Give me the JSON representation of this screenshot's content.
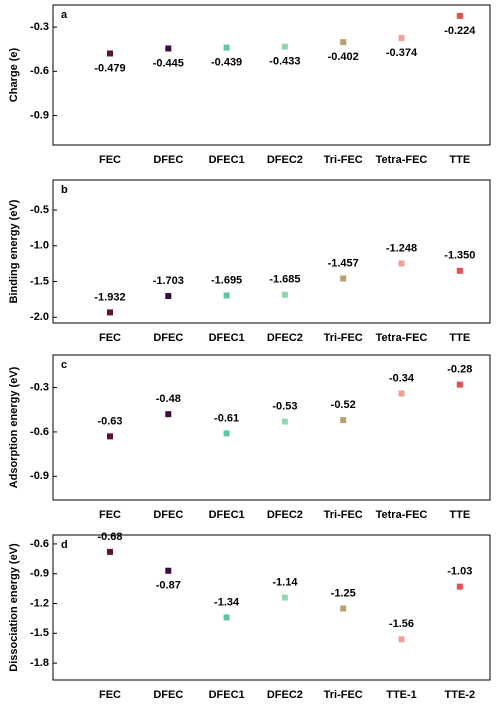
{
  "chart_data": [
    {
      "type": "scatter",
      "panel_label": "a",
      "y_label": "Charge (e)",
      "categories": [
        "FEC",
        "DFEC",
        "DFEC1",
        "DFEC2",
        "Tri-FEC",
        "Tetra-FEC",
        "TTE"
      ],
      "values": [
        -0.479,
        -0.445,
        -0.439,
        -0.433,
        -0.402,
        -0.374,
        -0.224
      ],
      "colors": [
        "#5c1438",
        "#3c0c3c",
        "#5cc8a8",
        "#8ed8b0",
        "#b8a070",
        "#f0a090",
        "#e05050"
      ],
      "ylim": [
        -1.1,
        -0.15
      ],
      "yticks": [
        -0.3,
        -0.6,
        -0.9
      ]
    },
    {
      "type": "scatter",
      "panel_label": "b",
      "y_label": "Binding energy (eV)",
      "categories": [
        "FEC",
        "DFEC",
        "DFEC1",
        "DFEC2",
        "Tri-FEC",
        "Tetra-FEC",
        "TTE"
      ],
      "values": [
        -1.932,
        -1.703,
        -1.695,
        -1.685,
        -1.457,
        -1.248,
        -1.35
      ],
      "value_labels": [
        "-1.932",
        "-1.703",
        "-1.695",
        "-1.685",
        "-1.457",
        "-1.248",
        "-1.350"
      ],
      "colors": [
        "#5c1438",
        "#3c0c3c",
        "#5cc8a8",
        "#8ed8b0",
        "#b8a070",
        "#f0a090",
        "#e05050"
      ],
      "ylim": [
        -2.08,
        -0.08
      ],
      "yticks": [
        -0.5,
        {
          "value": -1,
          "label": "-1.0"
        },
        -1.5,
        {
          "value": -2,
          "label": "-2.0"
        }
      ]
    },
    {
      "type": "scatter",
      "panel_label": "c",
      "y_label": "Adsorption energy (eV)",
      "categories": [
        "FEC",
        "DFEC",
        "DFEC1",
        "DFEC2",
        "Tri-FEC",
        "Tetra-FEC",
        "TTE"
      ],
      "values": [
        -0.63,
        -0.48,
        -0.61,
        -0.53,
        -0.52,
        -0.34,
        -0.28
      ],
      "colors": [
        "#5c1438",
        "#3c0c3c",
        "#5cc8a8",
        "#8ed8b0",
        "#b8a070",
        "#f0a090",
        "#e05050"
      ],
      "ylim": [
        -1.06,
        -0.08
      ],
      "yticks": [
        -0.3,
        -0.6,
        -0.9
      ]
    },
    {
      "type": "scatter",
      "panel_label": "d",
      "y_label": "Dissociation energy (eV)",
      "categories": [
        "FEC",
        "DFEC",
        "DFEC1",
        "DFEC2",
        "Tri-FEC",
        "TTE-1",
        "TTE-2"
      ],
      "values": [
        -0.68,
        -0.87,
        -1.34,
        -1.14,
        -1.25,
        -1.56,
        -1.03
      ],
      "colors": [
        "#5c1438",
        "#3c0c3c",
        "#5cc8a8",
        "#8ed8b0",
        "#b8a070",
        "#f0a090",
        "#e05050"
      ],
      "ylim": [
        -1.97,
        -0.51
      ],
      "yticks": [
        -0.6,
        -0.9,
        -1.2,
        -1.5,
        -1.8
      ]
    }
  ]
}
